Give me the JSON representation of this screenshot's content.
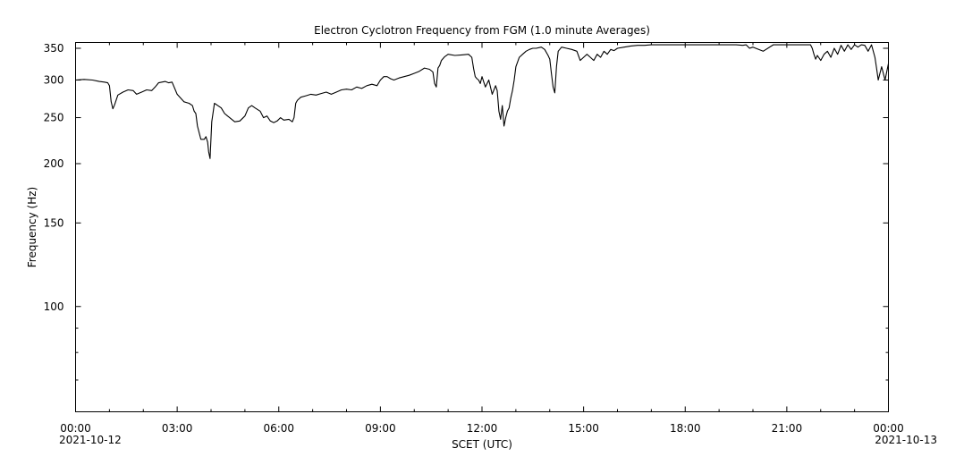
{
  "chart_data": {
    "type": "line",
    "title": "Electron Cyclotron Frequency from FGM (1.0 minute Averages)",
    "xlabel": "SCET (UTC)",
    "ylabel": "Frequency (Hz)",
    "yscale": "log",
    "ylim": [
      60,
      360
    ],
    "xlim_hours": [
      0,
      24
    ],
    "grid": false,
    "legend": "none",
    "start_date_label": "2021-10-12",
    "end_date_label": "2021-10-13",
    "x_ticks": [
      {
        "hour": 0,
        "label": "00:00"
      },
      {
        "hour": 3,
        "label": "03:00"
      },
      {
        "hour": 6,
        "label": "06:00"
      },
      {
        "hour": 9,
        "label": "09:00"
      },
      {
        "hour": 12,
        "label": "12:00"
      },
      {
        "hour": 15,
        "label": "15:00"
      },
      {
        "hour": 18,
        "label": "18:00"
      },
      {
        "hour": 21,
        "label": "21:00"
      },
      {
        "hour": 24,
        "label": "00:00"
      }
    ],
    "y_ticks": [
      {
        "value": 100,
        "label": "100"
      },
      {
        "value": 150,
        "label": "150"
      },
      {
        "value": 200,
        "label": "200"
      },
      {
        "value": 250,
        "label": "250"
      },
      {
        "value": 300,
        "label": "300"
      },
      {
        "value": 350,
        "label": "350"
      }
    ],
    "series": [
      {
        "color": "#000000",
        "x": [
          0.0,
          0.25,
          0.5,
          0.7,
          0.85,
          0.95,
          1.0,
          1.05,
          1.1,
          1.15,
          1.25,
          1.4,
          1.55,
          1.7,
          1.8,
          1.95,
          2.1,
          2.25,
          2.35,
          2.45,
          2.55,
          2.65,
          2.75,
          2.85,
          3.0,
          3.2,
          3.35,
          3.45,
          3.5,
          3.55,
          3.6,
          3.7,
          3.8,
          3.85,
          3.9,
          3.93,
          3.97,
          4.02,
          4.1,
          4.2,
          4.3,
          4.4,
          4.55,
          4.7,
          4.85,
          5.0,
          5.1,
          5.2,
          5.3,
          5.45,
          5.55,
          5.65,
          5.75,
          5.85,
          5.95,
          6.05,
          6.15,
          6.3,
          6.4,
          6.45,
          6.5,
          6.55,
          6.65,
          6.8,
          6.95,
          7.1,
          7.25,
          7.4,
          7.55,
          7.7,
          7.85,
          8.0,
          8.15,
          8.3,
          8.45,
          8.6,
          8.75,
          8.9,
          9.0,
          9.1,
          9.2,
          9.3,
          9.4,
          9.55,
          9.7,
          9.85,
          10.0,
          10.15,
          10.3,
          10.45,
          10.55,
          10.6,
          10.65,
          10.7,
          10.75,
          10.8,
          10.9,
          11.0,
          11.2,
          11.4,
          11.6,
          11.7,
          11.75,
          11.8,
          11.85,
          11.9,
          11.95,
          12.0,
          12.1,
          12.2,
          12.3,
          12.4,
          12.45,
          12.5,
          12.55,
          12.6,
          12.65,
          12.7,
          12.75,
          12.8,
          12.85,
          12.9,
          12.95,
          13.0,
          13.1,
          13.2,
          13.3,
          13.4,
          13.5,
          13.6,
          13.75,
          13.85,
          13.95,
          14.0,
          14.05,
          14.1,
          14.15,
          14.2,
          14.25,
          14.35,
          14.5,
          14.65,
          14.8,
          14.9,
          15.0,
          15.1,
          15.2,
          15.3,
          15.4,
          15.5,
          15.6,
          15.7,
          15.8,
          15.9,
          16.0,
          16.2,
          16.4,
          16.6,
          16.8,
          17.0,
          17.3,
          17.6,
          18.0,
          18.4,
          18.8,
          19.2,
          19.5,
          19.7,
          19.8,
          19.9,
          20.0,
          20.3,
          20.6,
          20.9,
          21.2,
          21.4,
          21.6,
          21.7,
          21.75,
          21.8,
          21.85,
          21.9,
          22.0,
          22.1,
          22.2,
          22.3,
          22.4,
          22.5,
          22.6,
          22.7,
          22.8,
          22.9,
          23.0,
          23.1,
          23.2,
          23.3,
          23.4,
          23.5,
          23.6,
          23.65,
          23.7,
          23.75,
          23.8,
          23.9,
          24.0
        ],
        "y": [
          300,
          301,
          300,
          298,
          297,
          296,
          292,
          270,
          261,
          266,
          279,
          283,
          286,
          285,
          280,
          283,
          286,
          285,
          290,
          296,
          297,
          298,
          296,
          297,
          280,
          270,
          268,
          265,
          258,
          255,
          240,
          225,
          225,
          228,
          222,
          212,
          205,
          245,
          268,
          265,
          262,
          255,
          250,
          245,
          246,
          252,
          262,
          265,
          262,
          258,
          250,
          252,
          246,
          244,
          246,
          250,
          247,
          248,
          245,
          250,
          268,
          272,
          276,
          278,
          280,
          279,
          281,
          283,
          280,
          283,
          286,
          287,
          286,
          290,
          288,
          292,
          294,
          292,
          300,
          305,
          305,
          302,
          300,
          303,
          305,
          307,
          310,
          313,
          318,
          316,
          312,
          295,
          290,
          318,
          322,
          330,
          336,
          340,
          338,
          339,
          340,
          335,
          318,
          305,
          302,
          300,
          295,
          305,
          290,
          300,
          280,
          292,
          285,
          258,
          248,
          265,
          240,
          250,
          258,
          262,
          275,
          285,
          300,
          320,
          335,
          340,
          345,
          348,
          350,
          350,
          352,
          348,
          338,
          332,
          310,
          290,
          282,
          320,
          345,
          352,
          350,
          348,
          345,
          330,
          335,
          340,
          335,
          330,
          340,
          335,
          345,
          340,
          348,
          346,
          350,
          352,
          354,
          355,
          355,
          356,
          356,
          356,
          356,
          356,
          356,
          356,
          356,
          355,
          356,
          350,
          352,
          345,
          356,
          356,
          356,
          356,
          356,
          356,
          350,
          340,
          332,
          338,
          330,
          340,
          345,
          335,
          350,
          340,
          355,
          345,
          356,
          348,
          356,
          352,
          356,
          355,
          345,
          356,
          335,
          318,
          300,
          310,
          320,
          300,
          325
        ]
      }
    ]
  }
}
